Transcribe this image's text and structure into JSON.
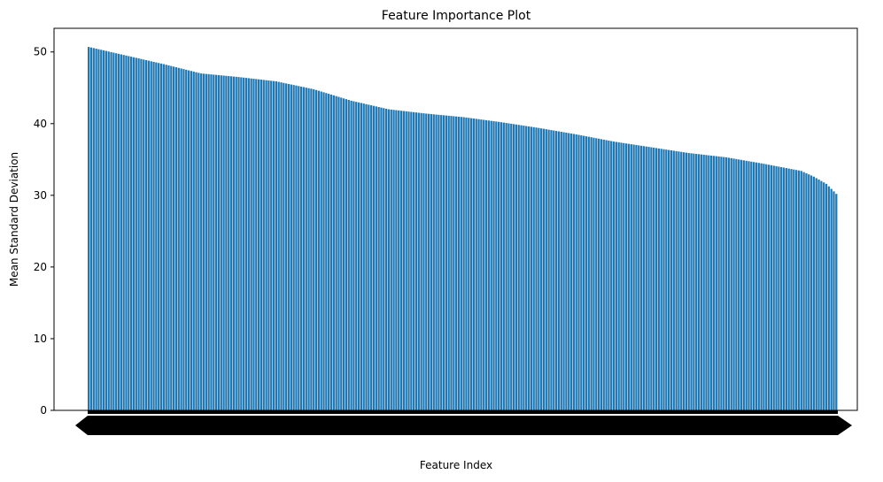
{
  "chart_data": {
    "type": "bar",
    "title": "Feature Importance Plot",
    "xlabel": "Feature Index",
    "ylabel": "Mean Standard Deviation",
    "ylim": [
      0,
      53.3
    ],
    "yticks": [
      0,
      10,
      20,
      30,
      40,
      50
    ],
    "grid": false,
    "legend": "none",
    "bar_color": "#1f77b4",
    "bar_count": 300,
    "x_tick_labels_note": "x tick labels are dense overlapping feature indices rendered as a solid black band",
    "value_curve": [
      {
        "index": 0,
        "value": 50.7
      },
      {
        "index": 15,
        "value": 49.5
      },
      {
        "index": 30,
        "value": 48.3
      },
      {
        "index": 45,
        "value": 47.0
      },
      {
        "index": 60,
        "value": 46.5
      },
      {
        "index": 75,
        "value": 45.9
      },
      {
        "index": 90,
        "value": 44.8
      },
      {
        "index": 105,
        "value": 43.2
      },
      {
        "index": 120,
        "value": 42.0
      },
      {
        "index": 135,
        "value": 41.4
      },
      {
        "index": 150,
        "value": 40.9
      },
      {
        "index": 165,
        "value": 40.2
      },
      {
        "index": 180,
        "value": 39.4
      },
      {
        "index": 195,
        "value": 38.5
      },
      {
        "index": 210,
        "value": 37.5
      },
      {
        "index": 225,
        "value": 36.7
      },
      {
        "index": 240,
        "value": 35.9
      },
      {
        "index": 255,
        "value": 35.3
      },
      {
        "index": 270,
        "value": 34.4
      },
      {
        "index": 285,
        "value": 33.4
      },
      {
        "index": 290,
        "value": 32.6
      },
      {
        "index": 295,
        "value": 31.6
      },
      {
        "index": 299,
        "value": 30.2
      }
    ]
  }
}
